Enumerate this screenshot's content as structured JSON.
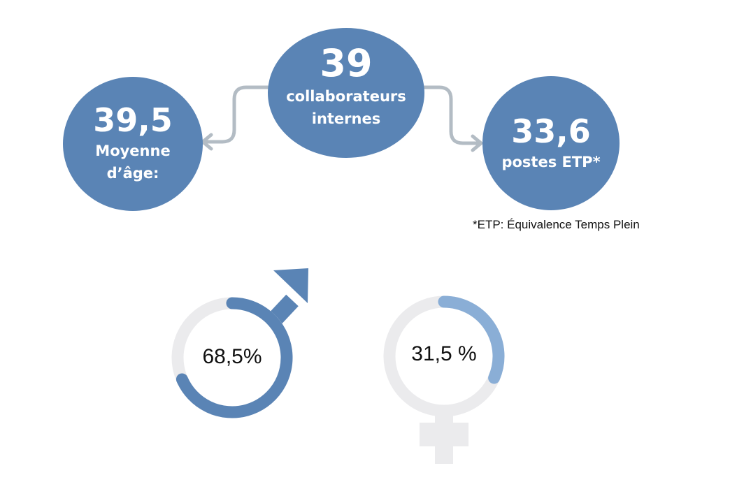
{
  "stats": [
    {
      "number": "39,5",
      "label": "Moyenne d’âge:"
    },
    {
      "number": "39",
      "label": "collaborateurs internes"
    },
    {
      "number": "33,6",
      "label": "postes ETP*"
    }
  ],
  "footnote": "*ETP: Équivalence Temps Plein",
  "gender": [
    {
      "value": 68.5,
      "label": "68,5%"
    },
    {
      "value": 31.5,
      "label": "31,5 %"
    }
  ]
}
